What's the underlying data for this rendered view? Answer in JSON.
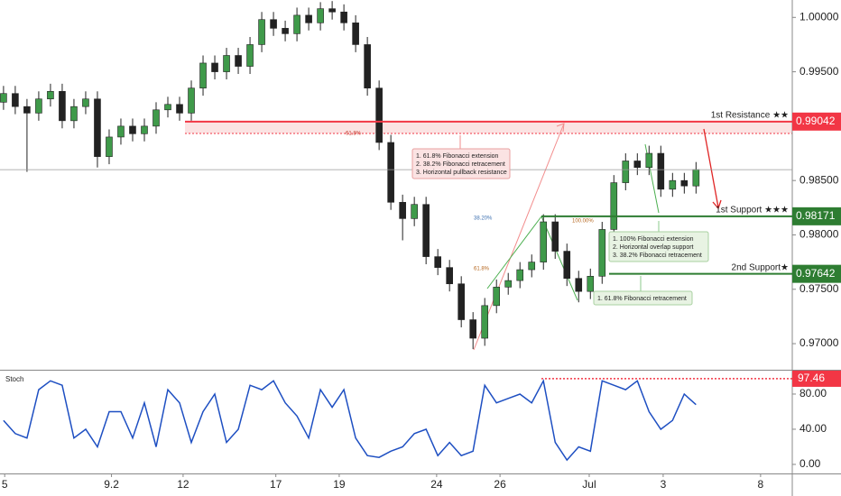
{
  "chart_data": [
    {
      "type": "candlestick",
      "x": [
        0,
        1,
        2,
        3,
        4,
        5,
        6,
        7,
        8,
        9,
        10,
        11,
        12,
        13,
        14,
        15,
        16,
        17,
        18,
        19,
        20,
        21,
        22,
        23,
        24,
        25,
        26,
        27,
        28,
        29,
        30,
        31,
        32,
        33,
        34,
        35,
        36,
        37,
        38,
        39,
        40,
        41,
        42,
        43,
        44,
        45,
        46,
        47,
        48,
        49,
        50,
        51,
        52,
        53,
        54,
        55,
        56,
        57,
        58,
        59
      ],
      "open": [
        0.9922,
        0.993,
        0.9918,
        0.9912,
        0.9925,
        0.9932,
        0.9905,
        0.9918,
        0.9925,
        0.9872,
        0.989,
        0.99,
        0.9893,
        0.99,
        0.9915,
        0.992,
        0.9912,
        0.9935,
        0.9958,
        0.995,
        0.9965,
        0.9955,
        0.9975,
        0.9998,
        0.999,
        0.9985,
        1.0002,
        0.9995,
        1.0008,
        1.0005,
        0.9995,
        0.9975,
        0.9935,
        0.9885,
        0.983,
        0.9815,
        0.9828,
        0.978,
        0.977,
        0.9755,
        0.9722,
        0.9705,
        0.9735,
        0.9752,
        0.9758,
        0.9768,
        0.9775,
        0.9812,
        0.9785,
        0.976,
        0.9748,
        0.9762,
        0.9805,
        0.9848,
        0.9868,
        0.9862,
        0.9875,
        0.9842,
        0.985,
        0.9845
      ],
      "high": [
        0.9937,
        0.9937,
        0.9925,
        0.9932,
        0.9939,
        0.9939,
        0.9925,
        0.9932,
        0.9932,
        0.9897,
        0.9907,
        0.9907,
        0.9907,
        0.9922,
        0.9927,
        0.9927,
        0.9942,
        0.9965,
        0.9965,
        0.9972,
        0.9972,
        0.9982,
        1.0005,
        1.0005,
        0.9997,
        1.0009,
        1.0009,
        1.0014,
        1.0015,
        1.0012,
        1.0002,
        0.9982,
        0.9942,
        0.9892,
        0.9837,
        0.9835,
        0.9835,
        0.9787,
        0.9777,
        0.9762,
        0.9729,
        0.9742,
        0.9759,
        0.9765,
        0.9775,
        0.9782,
        0.9819,
        0.9819,
        0.9792,
        0.9767,
        0.9769,
        0.9812,
        0.9855,
        0.9875,
        0.9875,
        0.9882,
        0.9882,
        0.9857,
        0.9857,
        0.9867
      ],
      "low": [
        0.9915,
        0.9911,
        0.9858,
        0.9905,
        0.9918,
        0.9898,
        0.9898,
        0.9911,
        0.9862,
        0.9865,
        0.9883,
        0.9886,
        0.9886,
        0.9893,
        0.9908,
        0.9905,
        0.9905,
        0.9928,
        0.9943,
        0.9943,
        0.9948,
        0.9948,
        0.9968,
        0.9983,
        0.9978,
        0.9978,
        0.9988,
        0.9988,
        0.9998,
        0.9988,
        0.9968,
        0.9928,
        0.9878,
        0.9823,
        0.9795,
        0.9808,
        0.9773,
        0.9763,
        0.9748,
        0.9715,
        0.9695,
        0.9698,
        0.9728,
        0.9745,
        0.9751,
        0.9761,
        0.9768,
        0.9778,
        0.9753,
        0.9738,
        0.9741,
        0.9755,
        0.9798,
        0.9841,
        0.9855,
        0.9855,
        0.9835,
        0.9835,
        0.9838,
        0.9838
      ],
      "close": [
        0.993,
        0.9918,
        0.9912,
        0.9925,
        0.9932,
        0.9905,
        0.9918,
        0.9925,
        0.9872,
        0.989,
        0.99,
        0.9893,
        0.99,
        0.9915,
        0.992,
        0.9912,
        0.9935,
        0.9958,
        0.995,
        0.9965,
        0.9955,
        0.9975,
        0.9998,
        0.999,
        0.9985,
        1.0002,
        0.9995,
        1.0008,
        1.0005,
        0.9995,
        0.9975,
        0.9935,
        0.9885,
        0.983,
        0.9815,
        0.9828,
        0.978,
        0.977,
        0.9755,
        0.9722,
        0.9705,
        0.9735,
        0.9752,
        0.9758,
        0.9768,
        0.9775,
        0.9812,
        0.9785,
        0.976,
        0.9748,
        0.9762,
        0.9805,
        0.9848,
        0.9868,
        0.9862,
        0.9875,
        0.9842,
        0.985,
        0.9845,
        0.986
      ],
      "up_color": "#3f9a4a",
      "down_color": "#222222",
      "xlim": [
        -0.3,
        67.2
      ],
      "xticks": [
        {
          "value": 0.1,
          "label": "5"
        },
        9.2,
        {
          "value": 15.3,
          "label": "12"
        },
        {
          "value": 23.2,
          "label": "17"
        },
        {
          "value": 28.6,
          "label": "19"
        },
        {
          "value": 36.9,
          "label": "24"
        },
        {
          "value": 42.3,
          "label": "26"
        },
        {
          "value": 49.9,
          "label": "Jul"
        },
        {
          "value": 56.2,
          "label": "3"
        },
        {
          "value": 64.5,
          "label": "8"
        }
      ],
      "ylim": [
        0.9676,
        1.0016
      ],
      "yticks": [
        {
          "value": 1.0,
          "label": "1.00000"
        },
        {
          "value": 0.995,
          "label": "0.99500"
        },
        {
          "value": 0.985,
          "label": "0.98500"
        },
        {
          "value": 0.98,
          "label": "0.98000"
        },
        {
          "value": 0.975,
          "label": "0.97500"
        },
        {
          "value": 0.97,
          "label": "0.97000"
        }
      ],
      "levels": [
        {
          "label": "1st Resistance ★★",
          "value": 0.99042,
          "color": "#f23645"
        },
        {
          "label": "1st Support ★★★",
          "value": 0.98171,
          "color": "#2e7d32"
        },
        {
          "label": "2nd Support★",
          "value": 0.97642,
          "color": "#2e7d32"
        }
      ],
      "fib_labels": [
        "61.8%",
        "38.20%",
        "100.00%",
        "61.8%"
      ],
      "annotations": [
        [
          "1. 61.8% Fibonacci extension",
          "2. 38.2% Fibonacci retracement",
          "3. Horizontal pullback resistance"
        ],
        [
          "1. 100% Fibonacci extension",
          "2. Horizontal overlap support",
          "3. 38.2% Fibonacci retracement"
        ],
        [
          "1. 61.8% Fibonacci retracement"
        ]
      ]
    },
    {
      "type": "line",
      "title": "Stoch",
      "color": "#1e4fc2",
      "values": [
        50,
        35,
        30,
        85,
        95,
        90,
        30,
        40,
        20,
        60,
        60,
        30,
        70,
        20,
        85,
        70,
        25,
        60,
        80,
        25,
        40,
        90,
        85,
        95,
        70,
        55,
        30,
        85,
        65,
        85,
        30,
        10,
        8,
        15,
        20,
        35,
        40,
        10,
        25,
        10,
        15,
        90,
        70,
        75,
        80,
        70,
        95,
        25,
        5,
        20,
        15,
        95,
        90,
        85,
        95,
        60,
        40,
        50,
        80,
        68
      ],
      "ylim": [
        -10.3,
        105.6
      ],
      "yticks": [
        {
          "value": 80,
          "label": "80.00"
        },
        {
          "value": 40,
          "label": "40.00"
        },
        {
          "value": 0,
          "label": "0.00"
        }
      ],
      "levels": [
        {
          "value": 97.46,
          "color": "#f23645"
        }
      ]
    }
  ]
}
